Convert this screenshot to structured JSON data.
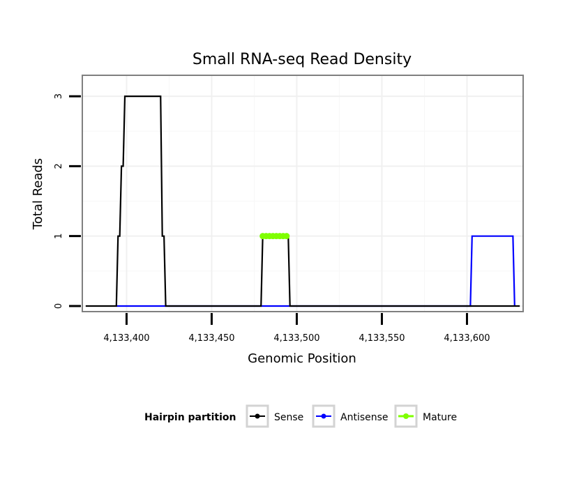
{
  "chart_data": {
    "type": "line",
    "title": "Small RNA-seq Read Density",
    "xlabel": "Genomic Position",
    "ylabel": "Total Reads",
    "xlim": [
      4133374,
      4133633
    ],
    "ylim": [
      -0.08,
      3.3
    ],
    "x_ticks": [
      4133400,
      4133450,
      4133500,
      4133550,
      4133600
    ],
    "x_tick_labels": [
      "4,133,400",
      "4,133,450",
      "4,133,500",
      "4,133,550",
      "4,133,600"
    ],
    "y_ticks": [
      0,
      1,
      2,
      3
    ],
    "y_tick_labels": [
      "0",
      "1",
      "2",
      "3"
    ],
    "legend": {
      "title": "Hairpin partition",
      "position": "bottom",
      "entries": [
        "Sense",
        "Antisense",
        "Mature"
      ]
    },
    "series": [
      {
        "name": "Sense",
        "color": "#000000",
        "points": [
          [
            4133376,
            0
          ],
          [
            4133394,
            0
          ],
          [
            4133395,
            1
          ],
          [
            4133396,
            1
          ],
          [
            4133397,
            2
          ],
          [
            4133398,
            2
          ],
          [
            4133399,
            3
          ],
          [
            4133420,
            3
          ],
          [
            4133421,
            1
          ],
          [
            4133422,
            1
          ],
          [
            4133423,
            0
          ],
          [
            4133479,
            0
          ],
          [
            4133480,
            1
          ],
          [
            4133495,
            1
          ],
          [
            4133496,
            0
          ],
          [
            4133631,
            0
          ]
        ]
      },
      {
        "name": "Antisense",
        "color": "#0000ff",
        "points": [
          [
            4133394,
            0
          ],
          [
            4133423,
            0
          ],
          [
            4133479,
            0
          ],
          [
            4133496,
            0
          ],
          [
            4133602,
            0
          ],
          [
            4133603,
            1
          ],
          [
            4133627,
            1
          ],
          [
            4133628,
            0
          ]
        ]
      },
      {
        "name": "Mature",
        "color": "#7fff00",
        "points": [
          [
            4133480,
            1
          ],
          [
            4133482,
            1
          ],
          [
            4133484,
            1
          ],
          [
            4133486,
            1
          ],
          [
            4133488,
            1
          ],
          [
            4133490,
            1
          ],
          [
            4133492,
            1
          ],
          [
            4133494,
            1
          ]
        ]
      }
    ]
  }
}
